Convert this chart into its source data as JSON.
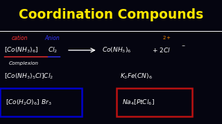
{
  "title": "Coordination Compounds",
  "title_color": "#FFE800",
  "bg_color": "#050510",
  "white": "#FFFFFF",
  "cation_color": "#FF3333",
  "anion_color": "#3333FF",
  "orange": "#FF8C00",
  "blue_box_color": "#0000CC",
  "red_box_color": "#BB1111",
  "cation_label": "cation",
  "anion_label": "Anion",
  "complexion_label": "Complexion"
}
